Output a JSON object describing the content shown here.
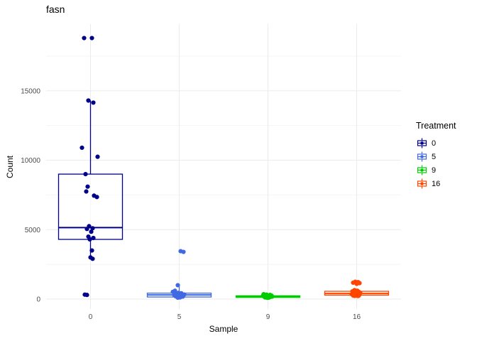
{
  "chart_data": {
    "type": "boxplot",
    "title": "fasn",
    "xlabel": "Sample",
    "ylabel": "Count",
    "legend_title": "Treatment",
    "legend_position": "right",
    "grid": true,
    "categories": [
      "0",
      "5",
      "9",
      "16"
    ],
    "yticks": [
      0,
      5000,
      10000,
      15000
    ],
    "ylim": [
      0,
      19800
    ],
    "series": [
      {
        "name": "0",
        "color": "#00008B",
        "box": {
          "whisker_low": 2900,
          "q1": 4300,
          "median": 5150,
          "q3": 9000,
          "whisker_high": 14300
        },
        "points": [
          [
            -9,
            18800
          ],
          [
            2,
            18800
          ],
          [
            -3,
            14300
          ],
          [
            4,
            14150
          ],
          [
            -12,
            10900
          ],
          [
            10,
            10250
          ],
          [
            -7,
            9000
          ],
          [
            -4,
            8100
          ],
          [
            -6,
            7750
          ],
          [
            5,
            7450
          ],
          [
            9,
            7350
          ],
          [
            -2,
            5250
          ],
          [
            3,
            5100
          ],
          [
            -5,
            5050
          ],
          [
            1,
            4850
          ],
          [
            -3,
            4500
          ],
          [
            4,
            4400
          ],
          [
            -1,
            4300
          ],
          [
            2,
            3500
          ],
          [
            0,
            3000
          ],
          [
            3,
            2900
          ],
          [
            -8,
            320
          ],
          [
            -5,
            300
          ]
        ]
      },
      {
        "name": "5",
        "color": "#4169E1",
        "box": {
          "whisker_low": 80,
          "q1": 150,
          "median": 300,
          "q3": 430,
          "whisker_high": 1000
        },
        "points": [
          [
            2,
            3450
          ],
          [
            6,
            3400
          ],
          [
            -2,
            1000
          ],
          [
            -6,
            600
          ],
          [
            -9,
            520
          ],
          [
            -1,
            450
          ],
          [
            3,
            420
          ],
          [
            -4,
            380
          ],
          [
            1,
            350
          ],
          [
            7,
            330
          ],
          [
            -7,
            300
          ],
          [
            0,
            280
          ],
          [
            4,
            260
          ],
          [
            -3,
            240
          ],
          [
            2,
            220
          ],
          [
            -5,
            200
          ],
          [
            5,
            180
          ],
          [
            -1,
            150
          ],
          [
            1,
            120
          ],
          [
            -2,
            100
          ]
        ]
      },
      {
        "name": "9",
        "color": "#00CD00",
        "box": {
          "whisker_low": 90,
          "q1": 120,
          "median": 180,
          "q3": 240,
          "whisker_high": 350
        },
        "points": [
          [
            -6,
            350
          ],
          [
            -2,
            320
          ],
          [
            3,
            300
          ],
          [
            -4,
            280
          ],
          [
            0,
            260
          ],
          [
            5,
            250
          ],
          [
            -7,
            240
          ],
          [
            2,
            230
          ],
          [
            -1,
            220
          ],
          [
            4,
            210
          ],
          [
            -3,
            200
          ],
          [
            1,
            190
          ],
          [
            6,
            180
          ],
          [
            -5,
            170
          ],
          [
            0,
            160
          ],
          [
            3,
            150
          ],
          [
            -2,
            140
          ],
          [
            2,
            130
          ],
          [
            -4,
            120
          ],
          [
            1,
            100
          ],
          [
            -1,
            90
          ]
        ]
      },
      {
        "name": "16",
        "color": "#FF4500",
        "box": {
          "whisker_low": 220,
          "q1": 280,
          "median": 400,
          "q3": 560,
          "whisker_high": 660
        },
        "points": [
          [
            -2,
            1250
          ],
          [
            2,
            1220
          ],
          [
            -5,
            1180
          ],
          [
            4,
            1150
          ],
          [
            0,
            1100
          ],
          [
            -3,
            650
          ],
          [
            1,
            600
          ],
          [
            -6,
            560
          ],
          [
            3,
            520
          ],
          [
            -1,
            480
          ],
          [
            5,
            450
          ],
          [
            -4,
            420
          ],
          [
            0,
            400
          ],
          [
            2,
            380
          ],
          [
            -7,
            350
          ],
          [
            4,
            330
          ],
          [
            -2,
            300
          ],
          [
            1,
            280
          ],
          [
            -5,
            260
          ],
          [
            3,
            250
          ],
          [
            0,
            240
          ],
          [
            -3,
            230
          ],
          [
            2,
            220
          ]
        ]
      }
    ]
  }
}
